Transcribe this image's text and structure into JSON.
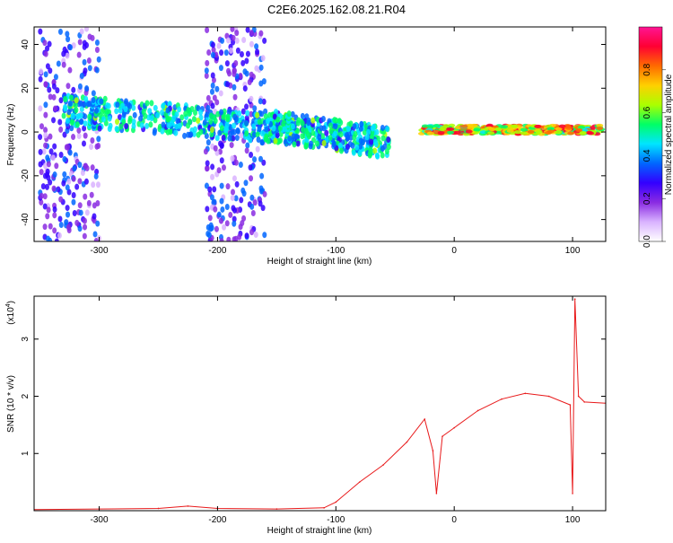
{
  "title": "C2E6.2025.162.08.21.R04",
  "chart_data": [
    {
      "type": "heatmap",
      "xlabel": "Height of straight line (km)",
      "ylabel": "Frequency (Hz)",
      "xlim": [
        -355,
        128
      ],
      "ylim": [
        -50,
        48
      ],
      "xticks": [
        -300,
        -200,
        -100,
        0,
        100
      ],
      "yticks": [
        -40,
        -20,
        0,
        20,
        40
      ],
      "colorbar": {
        "label": "Normalized spectral amplitude",
        "range": [
          0,
          1
        ],
        "ticks": [
          "0.0",
          "0.2",
          "0.4",
          "0.6",
          "0.8"
        ],
        "colors": [
          "#ffffff",
          "#d9b3ff",
          "#8a2be2",
          "#3300ff",
          "#0066ff",
          "#00e5ff",
          "#00ff66",
          "#aaff00",
          "#ffd000",
          "#ff6a00",
          "#ff0033",
          "#ff1493"
        ]
      },
      "bands": [
        {
          "x": [
            -350,
            -300
          ],
          "f": [
            -50,
            48
          ],
          "amp": 0.3
        },
        {
          "x": [
            -210,
            -160
          ],
          "f": [
            -50,
            48
          ],
          "amp": 0.3
        },
        {
          "x": [
            -330,
            -160
          ],
          "f_center": [
            10,
            2
          ],
          "amp": 0.6
        },
        {
          "x": [
            -160,
            -55
          ],
          "f_center": [
            3,
            -5
          ],
          "amp": 0.6
        },
        {
          "x": [
            -28,
            125
          ],
          "f_center": [
            1,
            1
          ],
          "amp": 0.95
        }
      ]
    },
    {
      "type": "line",
      "xlabel": "Height of straight line (km)",
      "ylabel": "SNR (10 * v/v)",
      "y_multiplier": "(x10",
      "y_multiplier_exp": "4",
      "xlim": [
        -355,
        128
      ],
      "ylim": [
        0,
        3.75
      ],
      "xticks": [
        -300,
        -200,
        -100,
        0,
        100
      ],
      "yticks": [
        1,
        2,
        3
      ],
      "color": "#e8191a",
      "points": [
        [
          -355,
          0.02
        ],
        [
          -300,
          0.03
        ],
        [
          -250,
          0.04
        ],
        [
          -225,
          0.08
        ],
        [
          -200,
          0.04
        ],
        [
          -150,
          0.03
        ],
        [
          -110,
          0.05
        ],
        [
          -100,
          0.15
        ],
        [
          -80,
          0.5
        ],
        [
          -60,
          0.8
        ],
        [
          -40,
          1.2
        ],
        [
          -25,
          1.6
        ],
        [
          -18,
          1.05
        ],
        [
          -15,
          0.3
        ],
        [
          -10,
          1.3
        ],
        [
          0,
          1.45
        ],
        [
          20,
          1.75
        ],
        [
          40,
          1.95
        ],
        [
          60,
          2.05
        ],
        [
          80,
          2.0
        ],
        [
          98,
          1.85
        ],
        [
          100,
          0.3
        ],
        [
          102,
          3.7
        ],
        [
          105,
          2.0
        ],
        [
          110,
          1.9
        ],
        [
          128,
          1.88
        ]
      ]
    }
  ]
}
